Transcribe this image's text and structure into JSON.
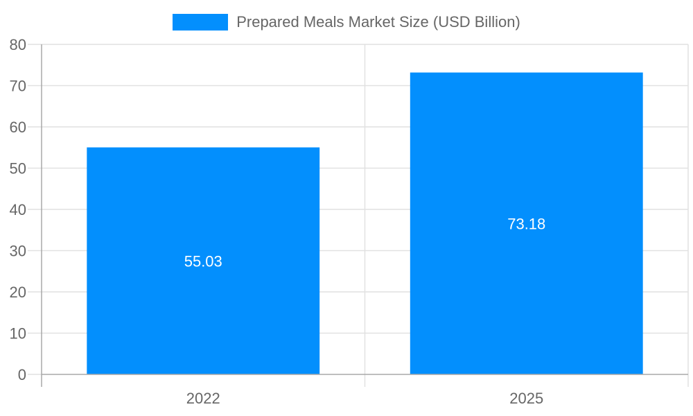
{
  "chart_data": {
    "type": "bar",
    "title": "",
    "categories": [
      "2022",
      "2025"
    ],
    "series": [
      {
        "name": "Prepared Meals Market Size (USD Billion)",
        "values": [
          55.03,
          73.18
        ],
        "color": "#038ffd"
      }
    ],
    "value_labels": [
      "55.03",
      "73.18"
    ],
    "xlabel": "",
    "ylabel": "",
    "ylim": [
      0,
      80
    ],
    "yticks": [
      0,
      10,
      20,
      30,
      40,
      50,
      60,
      70,
      80
    ],
    "grid": true,
    "legend_position": "top"
  },
  "legend": {
    "label": "Prepared Meals Market Size (USD Billion)",
    "color": "#038ffd"
  },
  "colors": {
    "bar": "#038ffd",
    "grid": "#e1e1e1",
    "axis": "#a8a8a8",
    "tick_text": "#666666",
    "value_text": "#ffffff"
  }
}
